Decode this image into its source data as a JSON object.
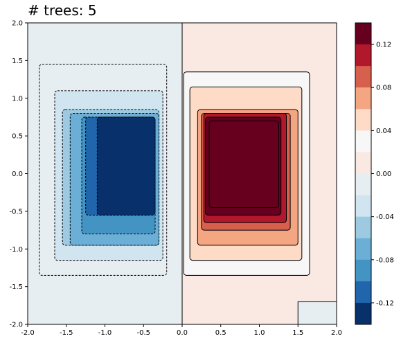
{
  "chart_data": {
    "type": "heatmap",
    "subtype": "filled-contour",
    "title": "# trees: 5",
    "xlim": [
      -2.0,
      2.0
    ],
    "ylim": [
      -2.0,
      2.0
    ],
    "x_ticks": [
      "-2.0",
      "-1.5",
      "-1.0",
      "-0.5",
      "0.0",
      "0.5",
      "1.0",
      "1.5",
      "2.0"
    ],
    "y_ticks": [
      "2.0",
      "1.5",
      "1.0",
      "0.5",
      "0.0",
      "-0.5",
      "-1.0",
      "-1.5",
      "-2.0"
    ],
    "colorbar": {
      "ticks": [
        "0.12",
        "0.08",
        "0.04",
        "0.00",
        "-0.04",
        "-0.08",
        "-0.12"
      ],
      "levels": [
        0.14,
        0.12,
        0.1,
        0.08,
        0.06,
        0.04,
        0.02,
        0.0,
        -0.02,
        -0.04,
        -0.06,
        -0.08,
        -0.1,
        -0.12,
        -0.14
      ],
      "colors": [
        "#67001f",
        "#b2182b",
        "#d6604d",
        "#f4a582",
        "#fddbc7",
        "#f7f7f7",
        "#f9e9e2",
        "#e7eef2",
        "#d1e5f0",
        "#9ecae1",
        "#6baed6",
        "#4393c3",
        "#2166ac",
        "#08306b"
      ]
    },
    "positive_region": {
      "x": [
        0.0,
        2.0
      ],
      "y": [
        -2.0,
        2.0
      ],
      "levels": [
        {
          "value": 0.02,
          "x": [
            0.02,
            1.65
          ],
          "y": [
            -1.35,
            1.35
          ]
        },
        {
          "value": 0.04,
          "x": [
            0.1,
            1.55
          ],
          "y": [
            -1.15,
            1.15
          ]
        },
        {
          "value": 0.06,
          "x": [
            0.2,
            1.5
          ],
          "y": [
            -0.95,
            0.85
          ]
        },
        {
          "value": 0.08,
          "x": [
            0.25,
            1.4
          ],
          "y": [
            -0.75,
            0.8
          ]
        },
        {
          "value": 0.1,
          "x": [
            0.28,
            1.35
          ],
          "y": [
            -0.65,
            0.8
          ]
        },
        {
          "value": 0.12,
          "x": [
            0.3,
            1.28
          ],
          "y": [
            -0.55,
            0.75
          ]
        },
        {
          "value": 0.14,
          "x": [
            0.35,
            1.25
          ],
          "y": [
            -0.45,
            0.7
          ]
        }
      ]
    },
    "negative_region": {
      "x": [
        -2.0,
        0.0
      ],
      "y": [
        -2.0,
        2.0
      ],
      "levels": [
        {
          "value": -0.02,
          "x": [
            -1.85,
            -0.2
          ],
          "y": [
            -1.35,
            1.45
          ]
        },
        {
          "value": -0.04,
          "x": [
            -1.65,
            -0.25
          ],
          "y": [
            -1.15,
            1.1
          ]
        },
        {
          "value": -0.06,
          "x": [
            -1.55,
            -0.3
          ],
          "y": [
            -0.95,
            0.85
          ]
        },
        {
          "value": -0.08,
          "x": [
            -1.45,
            -0.3
          ],
          "y": [
            -0.95,
            0.8
          ]
        },
        {
          "value": -0.1,
          "x": [
            -1.3,
            -0.35
          ],
          "y": [
            -0.8,
            0.75
          ]
        },
        {
          "value": -0.12,
          "x": [
            -1.25,
            -0.4
          ],
          "y": [
            -0.55,
            0.75
          ]
        },
        {
          "value": -0.14,
          "x": [
            -1.1,
            -0.35
          ],
          "y": [
            -0.55,
            0.75
          ]
        }
      ]
    },
    "corner_patch": {
      "x": [
        1.5,
        2.0
      ],
      "y": [
        -2.0,
        -1.7
      ],
      "value": -0.01
    }
  }
}
